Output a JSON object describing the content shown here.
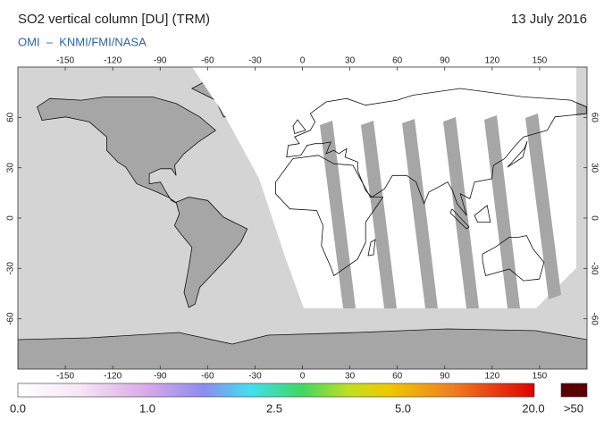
{
  "header": {
    "title": "SO2 vertical column [DU] (TRM)",
    "subtitle": "OMI  –  KNMI/FMI/NASA",
    "date": "13 July 2016"
  },
  "map": {
    "lon_ticks": [
      -150,
      -120,
      -90,
      -60,
      -30,
      0,
      30,
      60,
      90,
      120,
      150
    ],
    "lat_ticks": [
      60,
      30,
      0,
      -30,
      -60
    ]
  },
  "colorbar": {
    "labels": [
      "0.0",
      "1.0",
      "2.5",
      "5.0",
      "20.0",
      ">50"
    ]
  }
}
